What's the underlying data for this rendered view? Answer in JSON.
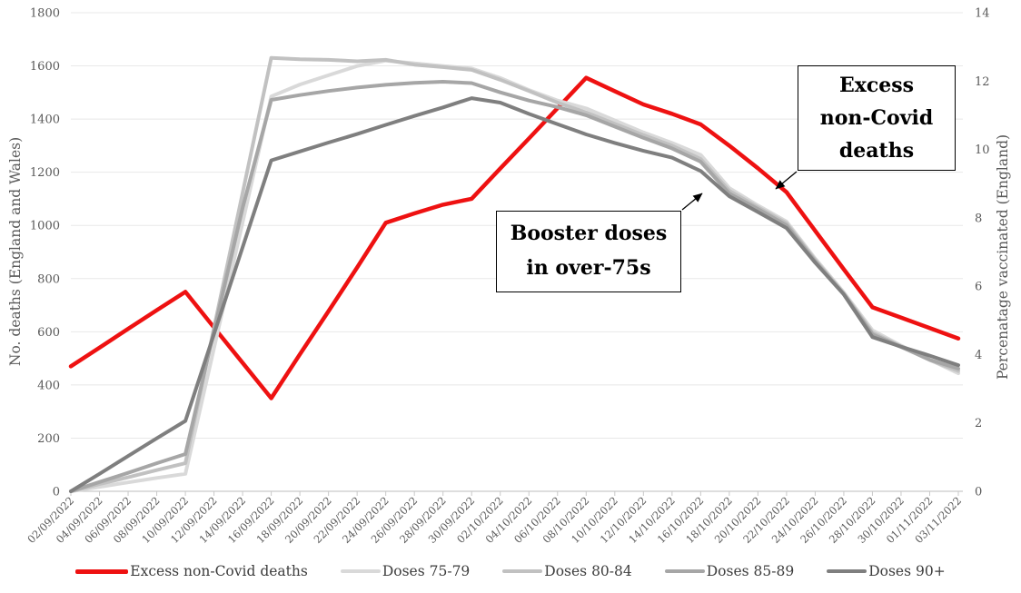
{
  "chart_data": {
    "type": "line",
    "grid": "horizontal",
    "legend_position": "bottom",
    "x_categories": [
      "02/09/2022",
      "04/09/2022",
      "06/09/2022",
      "08/09/2022",
      "10/09/2022",
      "12/09/2022",
      "14/09/2022",
      "16/09/2022",
      "18/09/2022",
      "20/09/2022",
      "22/09/2022",
      "24/09/2022",
      "26/09/2022",
      "28/09/2022",
      "30/09/2022",
      "02/10/2022",
      "04/10/2022",
      "06/10/2022",
      "08/10/2022",
      "10/10/2022",
      "12/10/2022",
      "14/10/2022",
      "16/10/2022",
      "18/10/2022",
      "20/10/2022",
      "22/10/2022",
      "24/10/2022",
      "26/10/2022",
      "28/10/2022",
      "30/10/2022",
      "01/11/2022",
      "03/11/2022"
    ],
    "left_axis": {
      "label": "No. deaths (England and Wales)",
      "min": 0,
      "max": 1800,
      "tick_step": 200,
      "ticks": [
        "0",
        "200",
        "400",
        "600",
        "800",
        "1000",
        "1200",
        "1400",
        "1600",
        "1800"
      ]
    },
    "right_axis": {
      "label": "Percenatage vaccinated (England)",
      "min": 0,
      "max": 14,
      "tick_step": 2,
      "ticks": [
        "0",
        "2",
        "4",
        "6",
        "8",
        "10",
        "12",
        "14"
      ]
    },
    "series": [
      {
        "name": "Excess non-Covid deaths",
        "axis": "left",
        "color": "#ee1111",
        "width": 4.5,
        "values": [
          470,
          540,
          611,
          681,
          750,
          616,
          483,
          350,
          515,
          677,
          842,
          1010,
          1045,
          1078,
          1100,
          1214,
          1327,
          1441,
          1555,
          1505,
          1455,
          1420,
          1380,
          1300,
          1215,
          1125,
          980,
          835,
          692,
          653,
          614,
          575
        ]
      },
      {
        "name": "Doses 75-79",
        "axis": "right",
        "color": "#d9d9d9",
        "width": 4,
        "values": [
          0,
          0.13,
          0.26,
          0.39,
          0.51,
          4.19,
          7.87,
          11.55,
          11.9,
          12.17,
          12.44,
          12.6,
          12.52,
          12.44,
          12.37,
          12.09,
          11.74,
          11.43,
          11.2,
          10.85,
          10.5,
          10.19,
          9.84,
          8.87,
          8.36,
          7.89,
          6.81,
          5.82,
          4.71,
          4.26,
          3.85,
          3.45
        ]
      },
      {
        "name": "Doses 80-84",
        "axis": "right",
        "color": "#c1c1c1",
        "width": 4,
        "values": [
          0,
          0.21,
          0.41,
          0.62,
          0.82,
          4.78,
          8.73,
          12.68,
          12.64,
          12.62,
          12.58,
          12.62,
          12.48,
          12.41,
          12.33,
          12.04,
          11.71,
          11.37,
          11.08,
          10.75,
          10.42,
          10.11,
          9.72,
          8.79,
          8.31,
          7.84,
          6.77,
          5.79,
          4.64,
          4.24,
          3.84,
          3.52
        ]
      },
      {
        "name": "Doses 85-89",
        "axis": "right",
        "color": "#a6a6a6",
        "width": 4,
        "values": [
          0,
          0.27,
          0.54,
          0.82,
          1.09,
          4.69,
          8.29,
          11.45,
          11.59,
          11.71,
          11.81,
          11.89,
          11.95,
          11.98,
          11.94,
          11.67,
          11.43,
          11.24,
          11.0,
          10.67,
          10.34,
          10.03,
          9.64,
          8.71,
          8.26,
          7.78,
          6.73,
          5.77,
          4.59,
          4.22,
          3.85,
          3.59
        ]
      },
      {
        "name": "Doses 90+",
        "axis": "right",
        "color": "#7f7f7f",
        "width": 4,
        "values": [
          0,
          0.51,
          1.03,
          1.55,
          2.06,
          4.6,
          7.14,
          9.68,
          9.94,
          10.2,
          10.45,
          10.72,
          10.98,
          11.23,
          11.5,
          11.37,
          11.04,
          10.74,
          10.44,
          10.19,
          9.96,
          9.76,
          9.37,
          8.63,
          8.17,
          7.7,
          6.69,
          5.76,
          4.51,
          4.23,
          3.97,
          3.69
        ]
      }
    ],
    "annotations": [
      {
        "id": "excess",
        "lines": [
          "Excess",
          "non-Covid",
          "deaths"
        ]
      },
      {
        "id": "booster",
        "lines": [
          "Booster doses",
          "in over-75s"
        ]
      }
    ]
  },
  "style_colors": {
    "gridline": "#e8e8e8",
    "axis_line": "#c9c9c9",
    "tick_text": "#595959",
    "annotation_border": "#000000"
  }
}
